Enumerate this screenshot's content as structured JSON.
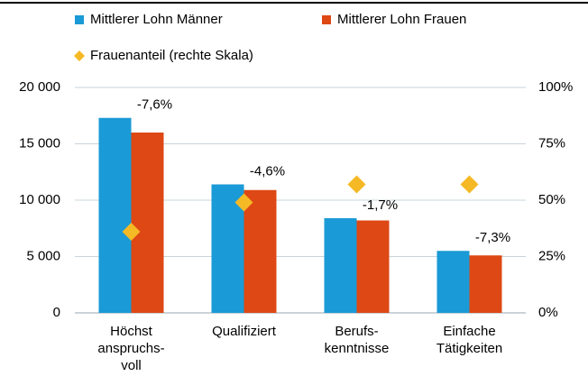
{
  "chart_data": {
    "type": "bar",
    "categories": [
      "Höchst\nanspruchs-\nvoll",
      "Qualifiziert",
      "Berufs-\nkenntnisse",
      "Einfache\nTätigkeiten"
    ],
    "series": [
      {
        "name": "Mittlerer Lohn Männer",
        "color": "#1a9ad6",
        "values": [
          17300,
          11400,
          8400,
          5500
        ]
      },
      {
        "name": "Mittlerer Lohn Frauen",
        "color": "#dd4814",
        "values": [
          16000,
          10900,
          8200,
          5100
        ]
      },
      {
        "name": "Frauenanteil (rechte Skala)",
        "color": "#f5b926",
        "type": "scatter",
        "axis": "y2",
        "values": [
          36,
          49,
          57,
          57
        ]
      }
    ],
    "difference_labels": [
      "-7,6%",
      "-4,6%",
      "-1,7%",
      "-7,3%"
    ],
    "ylim": [
      0,
      20000
    ],
    "yticks": [
      0,
      {
        "value": 5000,
        "label": "5 000"
      },
      {
        "value": 10000,
        "label": "10 000"
      },
      {
        "value": 15000,
        "label": "15 000"
      },
      {
        "value": 20000,
        "label": "20 000"
      }
    ],
    "y2lim": [
      0,
      100
    ],
    "y2ticks": [
      {
        "value": 0,
        "label": "0%"
      },
      {
        "value": 25,
        "label": "25%"
      },
      {
        "value": 50,
        "label": "50%"
      },
      {
        "value": 75,
        "label": "75%"
      },
      {
        "value": 100,
        "label": "100%"
      }
    ],
    "grid": true
  }
}
